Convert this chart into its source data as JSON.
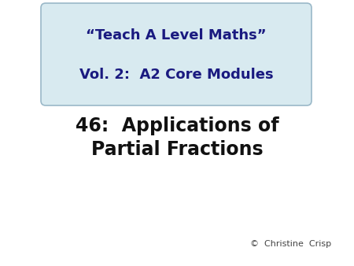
{
  "background_color": "#ffffff",
  "box_bg_color": "#d8eaf0",
  "box_border_color": "#9ab8c8",
  "box_text_line1": "“Teach A Level Maths”",
  "box_text_line2": "Vol. 2:  A2 Core Modules",
  "box_text_color": "#1a1a80",
  "main_text_line1": "46:  Applications of",
  "main_text_line2": "Partial Fractions",
  "main_text_color": "#111111",
  "credit_text": "©  Christine  Crisp",
  "credit_text_color": "#444444",
  "font_size_box": 13,
  "font_size_main": 17,
  "font_size_credit": 8
}
